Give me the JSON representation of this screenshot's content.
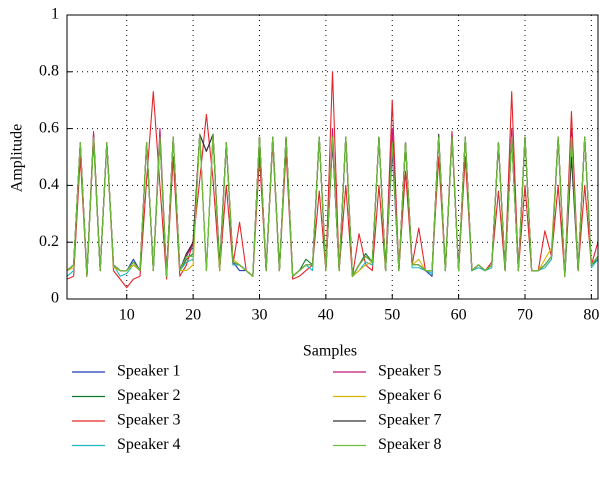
{
  "chart_data": {
    "type": "line",
    "xlabel": "Samples",
    "ylabel": "Amplitude",
    "x": [
      1,
      2,
      3,
      4,
      5,
      6,
      7,
      8,
      9,
      10,
      11,
      12,
      13,
      14,
      15,
      16,
      17,
      18,
      19,
      20,
      21,
      22,
      23,
      24,
      25,
      26,
      27,
      28,
      29,
      30,
      31,
      32,
      33,
      34,
      35,
      36,
      37,
      38,
      39,
      40,
      41,
      42,
      43,
      44,
      45,
      46,
      47,
      48,
      49,
      50,
      51,
      52,
      53,
      54,
      55,
      56,
      57,
      58,
      59,
      60,
      61,
      62,
      63,
      64,
      65,
      66,
      67,
      68,
      69,
      70,
      71,
      72,
      73,
      74,
      75,
      76,
      77,
      78,
      79,
      80,
      81
    ],
    "xlim": [
      1,
      81
    ],
    "xticks": [
      10,
      20,
      30,
      40,
      50,
      60,
      70,
      80
    ],
    "ylim": [
      0,
      1
    ],
    "yticks": [
      0,
      0.2,
      0.4,
      0.6,
      0.8,
      1
    ],
    "grid": true,
    "series": [
      {
        "name": "Speaker 1",
        "color": "#1c3fb0",
        "values": [
          0.1,
          0.12,
          0.55,
          0.08,
          0.58,
          0.1,
          0.55,
          0.12,
          0.1,
          0.1,
          0.14,
          0.1,
          0.55,
          0.1,
          0.57,
          0.08,
          0.57,
          0.1,
          0.16,
          0.18,
          0.58,
          0.1,
          0.58,
          0.1,
          0.55,
          0.13,
          0.1,
          0.1,
          0.08,
          0.57,
          0.1,
          0.57,
          0.1,
          0.57,
          0.08,
          0.1,
          0.12,
          0.12,
          0.57,
          0.1,
          0.57,
          0.1,
          0.57,
          0.08,
          0.12,
          0.15,
          0.13,
          0.57,
          0.1,
          0.52,
          0.1,
          0.55,
          0.12,
          0.12,
          0.1,
          0.08,
          0.57,
          0.1,
          0.57,
          0.1,
          0.57,
          0.1,
          0.12,
          0.1,
          0.12,
          0.55,
          0.1,
          0.57,
          0.1,
          0.57,
          0.1,
          0.1,
          0.12,
          0.15,
          0.57,
          0.08,
          0.57,
          0.1,
          0.57,
          0.12,
          0.14
        ]
      },
      {
        "name": "Speaker 2",
        "color": "#0f7a2e",
        "values": [
          0.1,
          0.12,
          0.55,
          0.08,
          0.57,
          0.1,
          0.55,
          0.12,
          0.1,
          0.1,
          0.13,
          0.1,
          0.55,
          0.1,
          0.57,
          0.08,
          0.57,
          0.1,
          0.14,
          0.16,
          0.58,
          0.1,
          0.58,
          0.1,
          0.55,
          0.13,
          0.12,
          0.1,
          0.08,
          0.57,
          0.1,
          0.57,
          0.1,
          0.57,
          0.08,
          0.1,
          0.14,
          0.12,
          0.57,
          0.1,
          0.57,
          0.1,
          0.57,
          0.08,
          0.12,
          0.16,
          0.13,
          0.57,
          0.1,
          0.55,
          0.1,
          0.55,
          0.12,
          0.12,
          0.1,
          0.1,
          0.57,
          0.1,
          0.57,
          0.1,
          0.57,
          0.1,
          0.12,
          0.1,
          0.12,
          0.55,
          0.1,
          0.57,
          0.1,
          0.57,
          0.1,
          0.1,
          0.12,
          0.15,
          0.57,
          0.08,
          0.57,
          0.1,
          0.57,
          0.12,
          0.15
        ]
      },
      {
        "name": "Speaker 3",
        "color": "#e3262b",
        "values": [
          0.07,
          0.08,
          0.5,
          0.08,
          0.59,
          0.1,
          0.55,
          0.1,
          0.07,
          0.04,
          0.07,
          0.08,
          0.42,
          0.73,
          0.4,
          0.07,
          0.5,
          0.08,
          0.12,
          0.2,
          0.42,
          0.65,
          0.42,
          0.1,
          0.4,
          0.12,
          0.27,
          0.1,
          0.08,
          0.5,
          0.1,
          0.55,
          0.1,
          0.52,
          0.07,
          0.08,
          0.1,
          0.12,
          0.38,
          0.1,
          0.8,
          0.1,
          0.4,
          0.08,
          0.23,
          0.12,
          0.1,
          0.4,
          0.1,
          0.7,
          0.1,
          0.45,
          0.12,
          0.25,
          0.1,
          0.1,
          0.5,
          0.1,
          0.59,
          0.1,
          0.5,
          0.1,
          0.12,
          0.1,
          0.13,
          0.38,
          0.1,
          0.73,
          0.1,
          0.4,
          0.1,
          0.1,
          0.24,
          0.15,
          0.4,
          0.08,
          0.66,
          0.1,
          0.4,
          0.12,
          0.2
        ]
      },
      {
        "name": "Speaker 4",
        "color": "#20b8c0",
        "values": [
          0.08,
          0.1,
          0.55,
          0.08,
          0.57,
          0.1,
          0.55,
          0.12,
          0.08,
          0.09,
          0.12,
          0.1,
          0.55,
          0.1,
          0.57,
          0.08,
          0.57,
          0.1,
          0.13,
          0.14,
          0.58,
          0.1,
          0.58,
          0.1,
          0.55,
          0.12,
          0.12,
          0.1,
          0.08,
          0.57,
          0.1,
          0.57,
          0.1,
          0.57,
          0.08,
          0.1,
          0.12,
          0.1,
          0.57,
          0.1,
          0.57,
          0.1,
          0.57,
          0.08,
          0.1,
          0.13,
          0.12,
          0.57,
          0.1,
          0.55,
          0.1,
          0.55,
          0.11,
          0.11,
          0.1,
          0.09,
          0.57,
          0.1,
          0.57,
          0.1,
          0.57,
          0.1,
          0.11,
          0.1,
          0.11,
          0.55,
          0.1,
          0.57,
          0.1,
          0.57,
          0.1,
          0.1,
          0.11,
          0.14,
          0.57,
          0.08,
          0.57,
          0.1,
          0.57,
          0.11,
          0.14
        ]
      },
      {
        "name": "Speaker 5",
        "color": "#c4177c",
        "values": [
          0.1,
          0.12,
          0.55,
          0.08,
          0.58,
          0.1,
          0.55,
          0.12,
          0.1,
          0.1,
          0.13,
          0.1,
          0.55,
          0.1,
          0.6,
          0.08,
          0.57,
          0.1,
          0.15,
          0.2,
          0.58,
          0.52,
          0.58,
          0.1,
          0.55,
          0.13,
          0.12,
          0.1,
          0.08,
          0.57,
          0.1,
          0.57,
          0.1,
          0.57,
          0.08,
          0.1,
          0.12,
          0.12,
          0.57,
          0.1,
          0.6,
          0.1,
          0.57,
          0.08,
          0.12,
          0.15,
          0.13,
          0.57,
          0.1,
          0.6,
          0.1,
          0.55,
          0.12,
          0.12,
          0.1,
          0.1,
          0.57,
          0.1,
          0.58,
          0.1,
          0.57,
          0.1,
          0.12,
          0.1,
          0.12,
          0.55,
          0.1,
          0.6,
          0.1,
          0.57,
          0.1,
          0.1,
          0.12,
          0.15,
          0.57,
          0.08,
          0.6,
          0.1,
          0.57,
          0.12,
          0.15
        ]
      },
      {
        "name": "Speaker 6",
        "color": "#d7b400",
        "values": [
          0.1,
          0.11,
          0.55,
          0.08,
          0.56,
          0.1,
          0.55,
          0.11,
          0.1,
          0.1,
          0.12,
          0.1,
          0.55,
          0.1,
          0.57,
          0.08,
          0.57,
          0.1,
          0.1,
          0.12,
          0.58,
          0.1,
          0.58,
          0.1,
          0.55,
          0.14,
          0.12,
          0.1,
          0.08,
          0.57,
          0.1,
          0.57,
          0.1,
          0.57,
          0.08,
          0.1,
          0.12,
          0.12,
          0.57,
          0.1,
          0.57,
          0.1,
          0.57,
          0.08,
          0.1,
          0.12,
          0.13,
          0.57,
          0.1,
          0.55,
          0.1,
          0.55,
          0.12,
          0.14,
          0.1,
          0.1,
          0.57,
          0.1,
          0.57,
          0.1,
          0.57,
          0.1,
          0.12,
          0.1,
          0.12,
          0.55,
          0.1,
          0.57,
          0.1,
          0.57,
          0.1,
          0.1,
          0.14,
          0.18,
          0.57,
          0.08,
          0.57,
          0.1,
          0.57,
          0.12,
          0.15
        ]
      },
      {
        "name": "Speaker 7",
        "color": "#333333",
        "values": [
          0.1,
          0.12,
          0.55,
          0.08,
          0.57,
          0.1,
          0.55,
          0.12,
          0.1,
          0.1,
          0.13,
          0.1,
          0.55,
          0.1,
          0.57,
          0.08,
          0.57,
          0.1,
          0.16,
          0.2,
          0.58,
          0.52,
          0.58,
          0.12,
          0.55,
          0.13,
          0.12,
          0.1,
          0.08,
          0.57,
          0.1,
          0.57,
          0.1,
          0.57,
          0.08,
          0.1,
          0.12,
          0.12,
          0.57,
          0.1,
          0.55,
          0.1,
          0.57,
          0.08,
          0.12,
          0.15,
          0.13,
          0.57,
          0.1,
          0.55,
          0.1,
          0.55,
          0.12,
          0.12,
          0.1,
          0.1,
          0.58,
          0.1,
          0.57,
          0.1,
          0.57,
          0.1,
          0.12,
          0.1,
          0.12,
          0.55,
          0.1,
          0.57,
          0.1,
          0.57,
          0.1,
          0.1,
          0.12,
          0.15,
          0.57,
          0.08,
          0.5,
          0.1,
          0.57,
          0.12,
          0.15
        ]
      },
      {
        "name": "Speaker 8",
        "color": "#6bbf3a",
        "values": [
          0.1,
          0.12,
          0.55,
          0.08,
          0.57,
          0.1,
          0.55,
          0.12,
          0.1,
          0.1,
          0.13,
          0.1,
          0.55,
          0.1,
          0.57,
          0.08,
          0.57,
          0.1,
          0.15,
          0.15,
          0.58,
          0.1,
          0.58,
          0.1,
          0.55,
          0.13,
          0.12,
          0.1,
          0.08,
          0.57,
          0.1,
          0.57,
          0.1,
          0.57,
          0.08,
          0.1,
          0.12,
          0.12,
          0.57,
          0.1,
          0.57,
          0.1,
          0.57,
          0.08,
          0.12,
          0.15,
          0.13,
          0.57,
          0.1,
          0.55,
          0.1,
          0.55,
          0.12,
          0.12,
          0.1,
          0.1,
          0.57,
          0.1,
          0.57,
          0.1,
          0.57,
          0.1,
          0.12,
          0.1,
          0.12,
          0.55,
          0.1,
          0.57,
          0.1,
          0.57,
          0.1,
          0.1,
          0.12,
          0.15,
          0.57,
          0.08,
          0.57,
          0.1,
          0.57,
          0.12,
          0.15
        ]
      }
    ]
  }
}
